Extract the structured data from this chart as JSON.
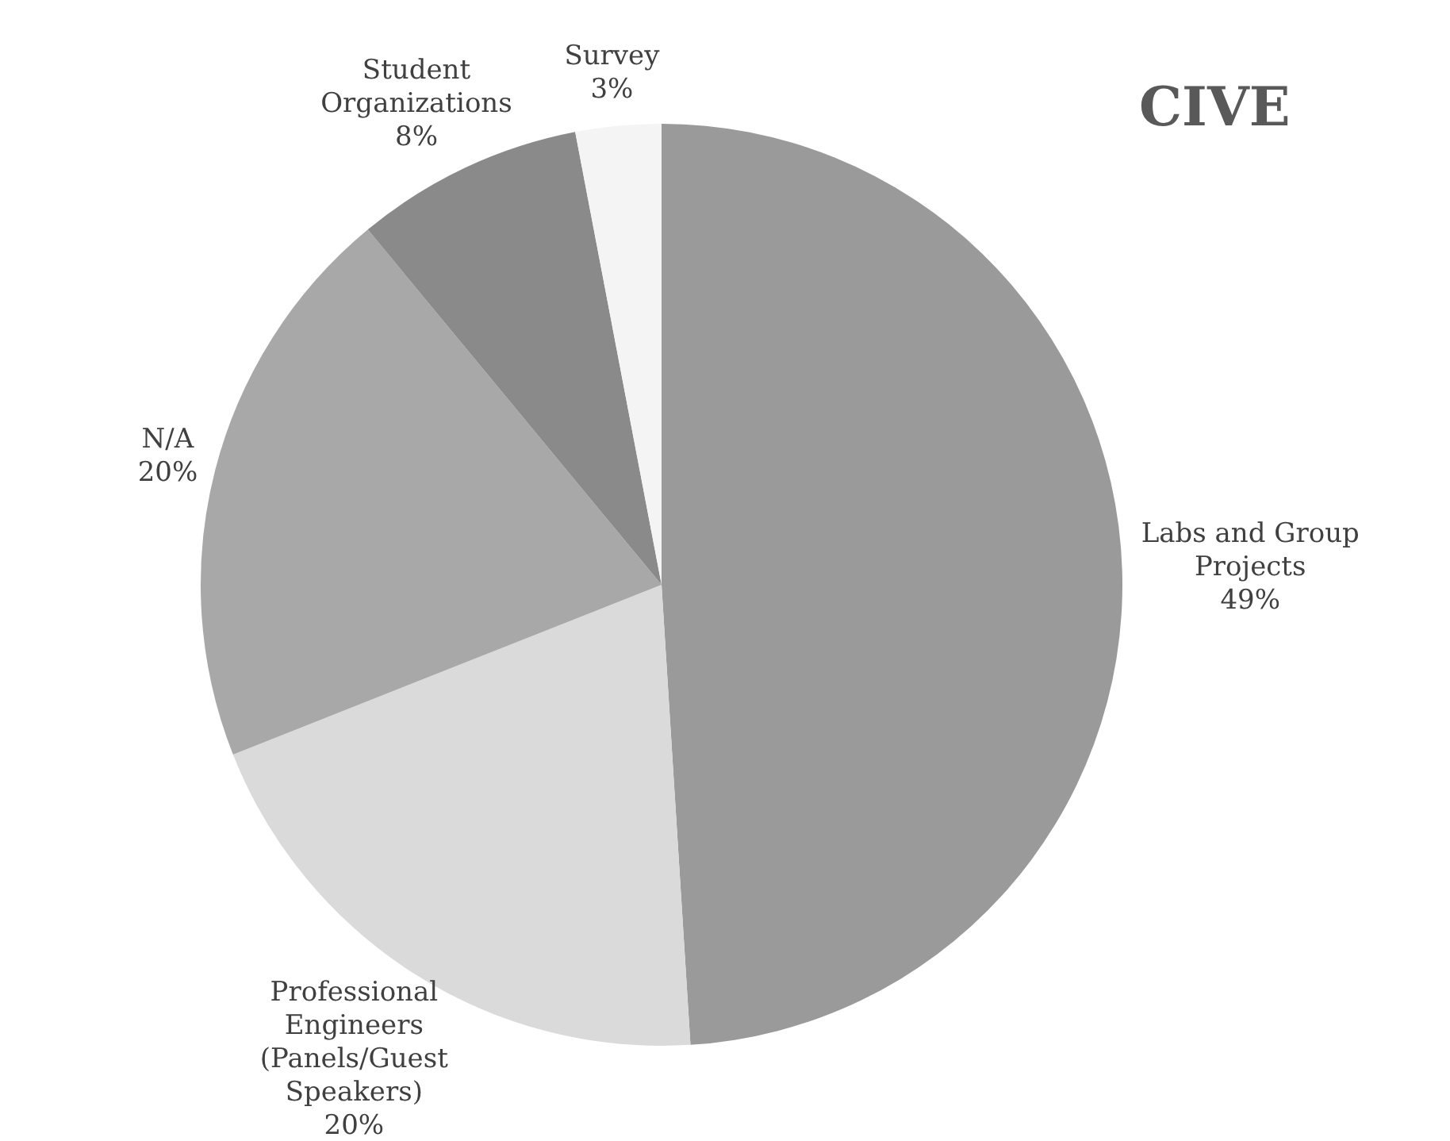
{
  "chart_data": {
    "type": "pie",
    "title": "CIVE",
    "categories": [
      "Labs and Group Projects",
      "Professional Engineers (Panels/Guest Speakers)",
      "N/A",
      "Student Organizations",
      "Survey"
    ],
    "values": [
      49,
      20,
      20,
      8,
      3
    ],
    "colors": [
      "#9a9a9a",
      "#dadada",
      "#a8a8a8",
      "#8a8a8a",
      "#f4f4f4"
    ],
    "value_labels": [
      "49%",
      "20%",
      "20%",
      "8%",
      "3%"
    ],
    "legend": false
  }
}
